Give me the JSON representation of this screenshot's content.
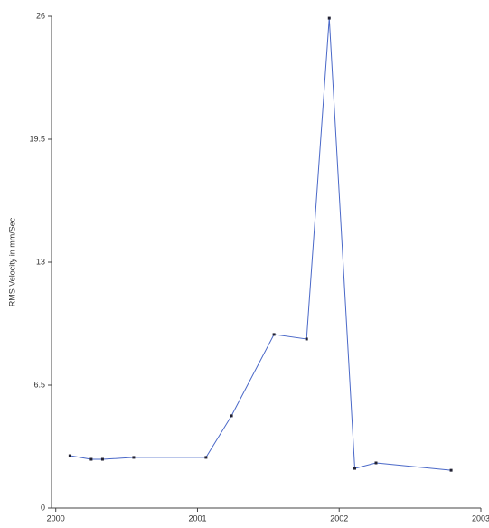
{
  "chart_data": {
    "type": "line",
    "y_label": "RMS Velocity in mm/Sec",
    "x": [
      2000.1,
      2000.25,
      2000.33,
      2000.55,
      2001.06,
      2001.24,
      2001.54,
      2001.77,
      2001.93,
      2002.11,
      2002.26,
      2002.79
    ],
    "series": [
      {
        "color": "#4a68c8",
        "values": [
          2.77,
          2.58,
          2.58,
          2.68,
          2.68,
          4.88,
          9.18,
          8.94,
          25.9,
          2.1,
          2.39,
          2.0
        ]
      }
    ],
    "xlim": [
      1999.97,
      2003
    ],
    "xticks": [
      2000,
      2001,
      2002,
      2003
    ],
    "ylim": [
      0,
      26
    ],
    "yticks": [
      0,
      6.5,
      13,
      19.5,
      26
    ],
    "grid": false
  }
}
